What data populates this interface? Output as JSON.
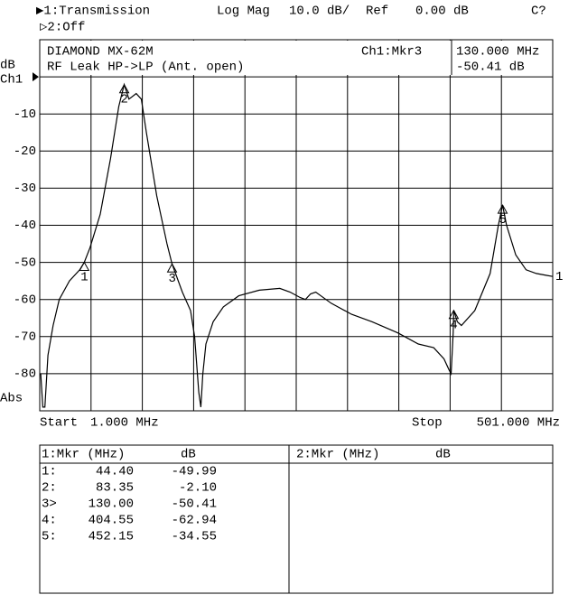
{
  "chart_data": {
    "type": "line",
    "header": {
      "channel1": "▶1:Transmission",
      "format": "Log Mag",
      "scale": "10.0 dB/",
      "ref_word": "Ref",
      "ref_text": "0.00 dB",
      "cal": "C?",
      "channel2": "▷2:Off"
    },
    "title": "DIAMOND MX-62M",
    "subtitle": "RF Leak HP->LP (Ant. open)",
    "active_marker": {
      "name": "Ch1:Mkr3",
      "freq": "130.000 MHz",
      "value": "-50.41 dB"
    },
    "y_unit": "dB",
    "ref_channel": "Ch1",
    "ref_level": {
      "value": 0,
      "label": "0.00 dB"
    },
    "y_mode": "Abs",
    "start_word": "Start",
    "start_text": "1.000 MHz",
    "stop_word": "Stop",
    "stop_text": "501.000 MHz",
    "xlim": [
      1,
      501
    ],
    "ylim": [
      -90,
      10
    ],
    "xgrid": [
      1,
      51,
      101,
      151,
      201,
      251,
      301,
      351,
      401,
      451,
      501
    ],
    "yticks": [
      -80,
      -70,
      -60,
      -50,
      -40,
      -30,
      -20,
      -10
    ],
    "grid": true,
    "series": [
      {
        "name": "1",
        "color": "#000000",
        "x": [
          2,
          4,
          6,
          9,
          14,
          20,
          30,
          40,
          44.4,
          50,
          60,
          70,
          78,
          83.35,
          88,
          95,
          100,
          105,
          115,
          125,
          130,
          140,
          148,
          152,
          156,
          158,
          160,
          163,
          170,
          180,
          195,
          215,
          235,
          245,
          255,
          260,
          265,
          270,
          285,
          305,
          325,
          350,
          370,
          385,
          395,
          400,
          402,
          404,
          404.55,
          408,
          412,
          425,
          440,
          448,
          452.15,
          456,
          465,
          475,
          485,
          495,
          501
        ],
        "values": [
          -80,
          -89,
          -89,
          -75,
          -67,
          -60,
          -55,
          -52,
          -49.99,
          -46,
          -37,
          -22,
          -8,
          -2.1,
          -6,
          -4.5,
          -6,
          -15,
          -32,
          -45,
          -50.41,
          -58,
          -63,
          -70,
          -85,
          -89,
          -80,
          -72,
          -66,
          -62,
          -59,
          -57.5,
          -57,
          -58,
          -59.5,
          -60,
          -58.5,
          -58,
          -61,
          -64,
          -66,
          -69,
          -72,
          -73,
          -76,
          -79,
          -80,
          -69,
          -62.94,
          -66,
          -67,
          -63,
          -53,
          -40,
          -34.55,
          -40,
          -48,
          -52,
          -53,
          -53.5,
          -53.8
        ]
      }
    ],
    "markers": {
      "names": [
        "1",
        "2",
        "3",
        "4",
        "5"
      ],
      "row_labels": [
        "1:",
        "2:",
        "3>",
        "4:",
        "5:"
      ],
      "freq": [
        44.4,
        83.35,
        130,
        404.55,
        452.15
      ],
      "freq_labels": [
        "44.40",
        "83.35",
        "130.00",
        "404.55",
        "452.15"
      ],
      "db": [
        -49.99,
        -2.1,
        -50.41,
        -62.94,
        -34.55
      ],
      "db_labels": [
        "-49.99",
        "-2.10",
        "-50.41",
        "-62.94",
        "-34.55"
      ]
    },
    "table": {
      "left_header": "1:Mkr (MHz)",
      "left_unit": "dB",
      "right_header": "2:Mkr (MHz)",
      "right_unit": "dB"
    }
  }
}
